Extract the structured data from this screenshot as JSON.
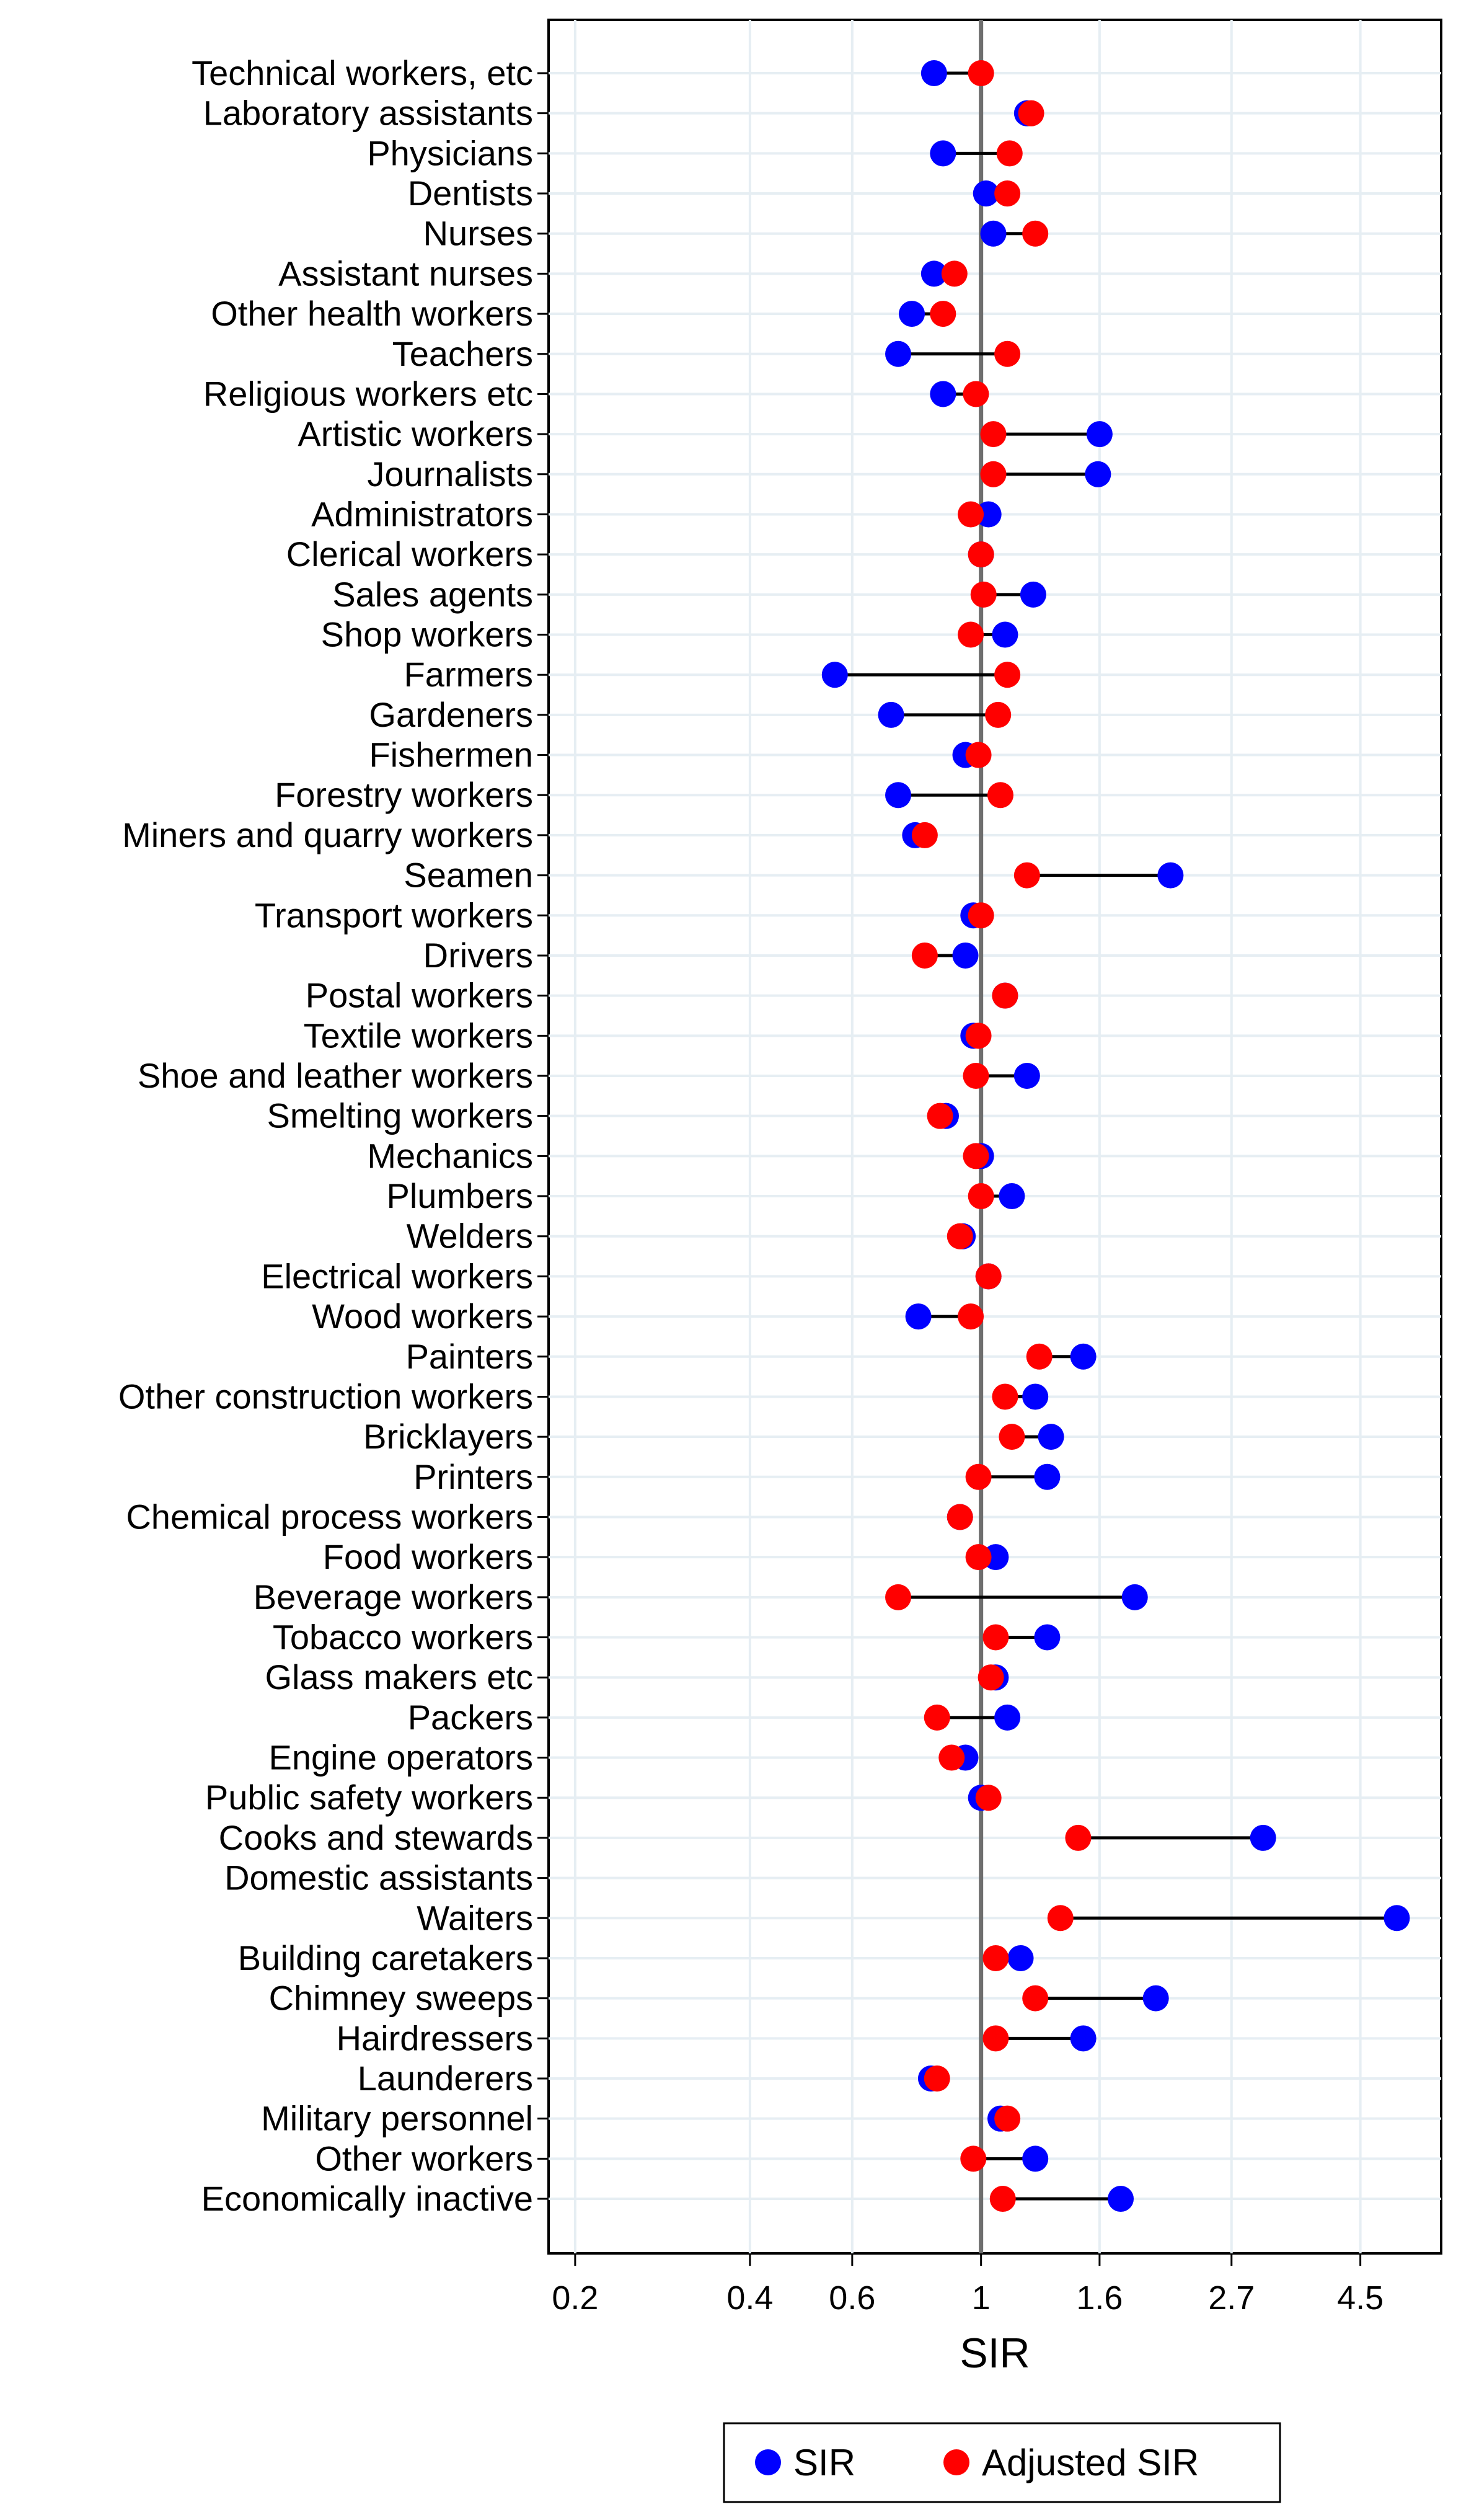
{
  "chart_data": {
    "type": "dumbbell",
    "xlabel": "SIR",
    "x_scale": "log",
    "xlim": [
      0.18,
      6.2
    ],
    "reference_line": 1,
    "x_ticks": [
      0.2,
      0.4,
      0.6,
      1,
      1.6,
      2.7,
      4.5
    ],
    "x_tick_labels": [
      "0.2",
      "0.4",
      "0.6",
      "1",
      "1.6",
      "2.7",
      "4.5"
    ],
    "series": [
      {
        "name": "SIR",
        "color": "#0000ff"
      },
      {
        "name": "Adjusted SIR",
        "color": "#ff0000"
      }
    ],
    "legend": {
      "position": "bottom",
      "labels": [
        "SIR",
        "Adjusted SIR"
      ]
    },
    "categories": [
      {
        "label": "Technical workers, etc",
        "sir": 0.83,
        "adj": 1.0
      },
      {
        "label": "Laboratory assistants",
        "sir": 1.2,
        "adj": 1.22
      },
      {
        "label": "Physicians",
        "sir": 0.86,
        "adj": 1.12
      },
      {
        "label": "Dentists",
        "sir": 1.02,
        "adj": 1.11
      },
      {
        "label": "Nurses",
        "sir": 1.05,
        "adj": 1.24
      },
      {
        "label": "Assistant nurses",
        "sir": 0.83,
        "adj": 0.9
      },
      {
        "label": "Other health workers",
        "sir": 0.76,
        "adj": 0.86
      },
      {
        "label": "Teachers",
        "sir": 0.72,
        "adj": 1.11
      },
      {
        "label": "Religious workers etc",
        "sir": 0.86,
        "adj": 0.98
      },
      {
        "label": "Artistic workers",
        "sir": 1.6,
        "adj": 1.05
      },
      {
        "label": "Journalists",
        "sir": 1.59,
        "adj": 1.05
      },
      {
        "label": "Administrators",
        "sir": 1.03,
        "adj": 0.96
      },
      {
        "label": "Clerical workers",
        "sir": 1.0,
        "adj": 1.0
      },
      {
        "label": "Sales agents",
        "sir": 1.23,
        "adj": 1.01
      },
      {
        "label": "Shop workers",
        "sir": 1.1,
        "adj": 0.96
      },
      {
        "label": "Farmers",
        "sir": 0.56,
        "adj": 1.11
      },
      {
        "label": "Gardeners",
        "sir": 0.7,
        "adj": 1.07
      },
      {
        "label": "Fishermen",
        "sir": 0.94,
        "adj": 0.99
      },
      {
        "label": "Forestry workers",
        "sir": 0.72,
        "adj": 1.08
      },
      {
        "label": "Miners and quarry workers",
        "sir": 0.77,
        "adj": 0.8
      },
      {
        "label": "Seamen",
        "sir": 2.12,
        "adj": 1.2
      },
      {
        "label": "Transport workers",
        "sir": 0.97,
        "adj": 1.0
      },
      {
        "label": "Drivers",
        "sir": 0.94,
        "adj": 0.8
      },
      {
        "label": "Postal workers",
        "sir": 1.1,
        "adj": 1.1
      },
      {
        "label": "Textile workers",
        "sir": 0.97,
        "adj": 0.99
      },
      {
        "label": "Shoe and leather workers",
        "sir": 1.2,
        "adj": 0.98
      },
      {
        "label": "Smelting workers",
        "sir": 0.87,
        "adj": 0.85
      },
      {
        "label": "Mechanics",
        "sir": 1.0,
        "adj": 0.98
      },
      {
        "label": "Plumbers",
        "sir": 1.13,
        "adj": 1.0
      },
      {
        "label": "Welders",
        "sir": 0.93,
        "adj": 0.92
      },
      {
        "label": "Electrical workers",
        "sir": 1.03,
        "adj": 1.03
      },
      {
        "label": "Wood workers",
        "sir": 0.78,
        "adj": 0.96
      },
      {
        "label": "Painters",
        "sir": 1.5,
        "adj": 1.26
      },
      {
        "label": "Other construction workers",
        "sir": 1.24,
        "adj": 1.1
      },
      {
        "label": "Bricklayers",
        "sir": 1.32,
        "adj": 1.13
      },
      {
        "label": "Printers",
        "sir": 1.3,
        "adj": 0.99
      },
      {
        "label": "Chemical process workers",
        "sir": 0.92,
        "adj": 0.92
      },
      {
        "label": "Food workers",
        "sir": 1.06,
        "adj": 0.99
      },
      {
        "label": "Beverage workers",
        "sir": 1.84,
        "adj": 0.72
      },
      {
        "label": "Tobacco workers",
        "sir": 1.3,
        "adj": 1.06
      },
      {
        "label": "Glass makers etc",
        "sir": 1.06,
        "adj": 1.04
      },
      {
        "label": "Packers",
        "sir": 1.11,
        "adj": 0.84
      },
      {
        "label": "Engine operators",
        "sir": 0.94,
        "adj": 0.89
      },
      {
        "label": "Public safety workers",
        "sir": 1.0,
        "adj": 1.03
      },
      {
        "label": "Cooks and stewards",
        "sir": 3.06,
        "adj": 1.47
      },
      {
        "label": "Domestic assistants",
        "sir": null,
        "adj": null
      },
      {
        "label": "Waiters",
        "sir": 5.2,
        "adj": 1.37
      },
      {
        "label": "Building caretakers",
        "sir": 1.17,
        "adj": 1.06
      },
      {
        "label": "Chimney sweeps",
        "sir": 2.0,
        "adj": 1.24
      },
      {
        "label": "Hairdressers",
        "sir": 1.5,
        "adj": 1.06
      },
      {
        "label": "Launderers",
        "sir": 0.82,
        "adj": 0.84
      },
      {
        "label": "Military personnel",
        "sir": 1.08,
        "adj": 1.11
      },
      {
        "label": "Other workers",
        "sir": 1.24,
        "adj": 0.97
      },
      {
        "label": "Economically inactive",
        "sir": 1.74,
        "adj": 1.09
      }
    ]
  }
}
